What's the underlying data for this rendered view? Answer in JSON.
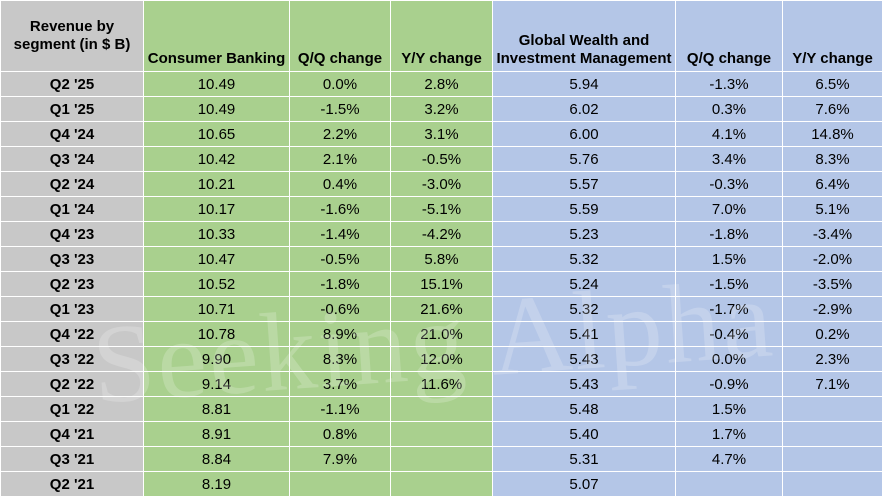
{
  "header": {
    "label": "Revenue by segment (in $ B)",
    "consumer_banking": "Consumer Banking",
    "cb_qq": "Q/Q change",
    "cb_yy": "Y/Y change",
    "global_wealth": "Global Wealth and Investment Management",
    "gw_qq": "Q/Q change",
    "gw_yy": "Y/Y change"
  },
  "rows": [
    {
      "quarter": "Q2 '25",
      "cb": "10.49",
      "cb_qq": "0.0%",
      "cb_yy": "2.8%",
      "gw": "5.94",
      "gw_qq": "-1.3%",
      "gw_yy": "6.5%"
    },
    {
      "quarter": "Q1 '25",
      "cb": "10.49",
      "cb_qq": "-1.5%",
      "cb_yy": "3.2%",
      "gw": "6.02",
      "gw_qq": "0.3%",
      "gw_yy": "7.6%"
    },
    {
      "quarter": "Q4 '24",
      "cb": "10.65",
      "cb_qq": "2.2%",
      "cb_yy": "3.1%",
      "gw": "6.00",
      "gw_qq": "4.1%",
      "gw_yy": "14.8%"
    },
    {
      "quarter": "Q3 '24",
      "cb": "10.42",
      "cb_qq": "2.1%",
      "cb_yy": "-0.5%",
      "gw": "5.76",
      "gw_qq": "3.4%",
      "gw_yy": "8.3%"
    },
    {
      "quarter": "Q2 '24",
      "cb": "10.21",
      "cb_qq": "0.4%",
      "cb_yy": "-3.0%",
      "gw": "5.57",
      "gw_qq": "-0.3%",
      "gw_yy": "6.4%"
    },
    {
      "quarter": "Q1 '24",
      "cb": "10.17",
      "cb_qq": "-1.6%",
      "cb_yy": "-5.1%",
      "gw": "5.59",
      "gw_qq": "7.0%",
      "gw_yy": "5.1%"
    },
    {
      "quarter": "Q4 '23",
      "cb": "10.33",
      "cb_qq": "-1.4%",
      "cb_yy": "-4.2%",
      "gw": "5.23",
      "gw_qq": "-1.8%",
      "gw_yy": "-3.4%"
    },
    {
      "quarter": "Q3 '23",
      "cb": "10.47",
      "cb_qq": "-0.5%",
      "cb_yy": "5.8%",
      "gw": "5.32",
      "gw_qq": "1.5%",
      "gw_yy": "-2.0%"
    },
    {
      "quarter": "Q2 '23",
      "cb": "10.52",
      "cb_qq": "-1.8%",
      "cb_yy": "15.1%",
      "gw": "5.24",
      "gw_qq": "-1.5%",
      "gw_yy": "-3.5%"
    },
    {
      "quarter": "Q1 '23",
      "cb": "10.71",
      "cb_qq": "-0.6%",
      "cb_yy": "21.6%",
      "gw": "5.32",
      "gw_qq": "-1.7%",
      "gw_yy": "-2.9%"
    },
    {
      "quarter": "Q4 '22",
      "cb": "10.78",
      "cb_qq": "8.9%",
      "cb_yy": "21.0%",
      "gw": "5.41",
      "gw_qq": "-0.4%",
      "gw_yy": "0.2%"
    },
    {
      "quarter": "Q3 '22",
      "cb": "9.90",
      "cb_qq": "8.3%",
      "cb_yy": "12.0%",
      "gw": "5.43",
      "gw_qq": "0.0%",
      "gw_yy": "2.3%"
    },
    {
      "quarter": "Q2 '22",
      "cb": "9.14",
      "cb_qq": "3.7%",
      "cb_yy": "11.6%",
      "gw": "5.43",
      "gw_qq": "-0.9%",
      "gw_yy": "7.1%"
    },
    {
      "quarter": "Q1 '22",
      "cb": "8.81",
      "cb_qq": "-1.1%",
      "cb_yy": "",
      "gw": "5.48",
      "gw_qq": "1.5%",
      "gw_yy": ""
    },
    {
      "quarter": "Q4 '21",
      "cb": "8.91",
      "cb_qq": "0.8%",
      "cb_yy": "",
      "gw": "5.40",
      "gw_qq": "1.7%",
      "gw_yy": ""
    },
    {
      "quarter": "Q3 '21",
      "cb": "8.84",
      "cb_qq": "7.9%",
      "cb_yy": "",
      "gw": "5.31",
      "gw_qq": "4.7%",
      "gw_yy": ""
    },
    {
      "quarter": "Q2 '21",
      "cb": "8.19",
      "cb_qq": "",
      "cb_yy": "",
      "gw": "5.07",
      "gw_qq": "",
      "gw_yy": ""
    }
  ],
  "watermark": "Seeking Alpha",
  "colors": {
    "quarter_col": "#c8c8c8",
    "consumer_banking": "#a9d08e",
    "global_wealth": "#b4c6e7"
  }
}
